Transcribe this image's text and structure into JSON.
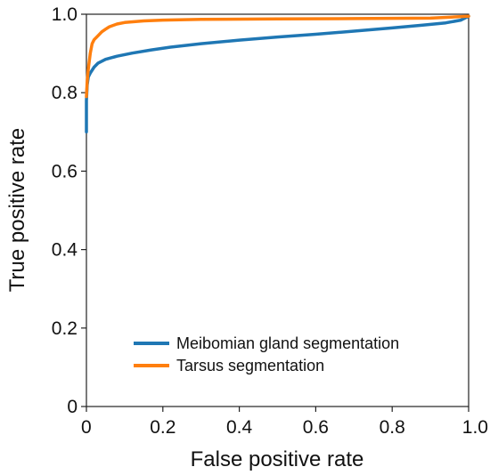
{
  "chart_data": {
    "type": "line",
    "title": "",
    "xlabel": "False positive rate",
    "ylabel": "True positive rate",
    "xlim": [
      0,
      1.0
    ],
    "ylim": [
      0,
      1.0
    ],
    "x_ticks": [
      "0",
      "0.2",
      "0.4",
      "0.6",
      "0.8",
      "1.0"
    ],
    "y_ticks": [
      "0",
      "0.2",
      "0.4",
      "0.6",
      "0.8",
      "1.0"
    ],
    "grid": false,
    "legend_position": "bottom-right",
    "series": [
      {
        "name": "Meibomian gland segmentation",
        "color": "#1f77b4",
        "points": [
          [
            0,
            0.7
          ],
          [
            0,
            0.78
          ],
          [
            0.002,
            0.82
          ],
          [
            0.005,
            0.84
          ],
          [
            0.01,
            0.85
          ],
          [
            0.02,
            0.865
          ],
          [
            0.03,
            0.875
          ],
          [
            0.05,
            0.885
          ],
          [
            0.08,
            0.893
          ],
          [
            0.12,
            0.901
          ],
          [
            0.17,
            0.909
          ],
          [
            0.22,
            0.916
          ],
          [
            0.3,
            0.925
          ],
          [
            0.4,
            0.934
          ],
          [
            0.5,
            0.942
          ],
          [
            0.6,
            0.949
          ],
          [
            0.7,
            0.957
          ],
          [
            0.8,
            0.965
          ],
          [
            0.88,
            0.972
          ],
          [
            0.94,
            0.978
          ],
          [
            0.98,
            0.985
          ],
          [
            1.0,
            0.995
          ]
        ]
      },
      {
        "name": "Tarsus segmentation",
        "color": "#ff7f0e",
        "points": [
          [
            0,
            0.79
          ],
          [
            0.002,
            0.83
          ],
          [
            0.005,
            0.86
          ],
          [
            0.01,
            0.9
          ],
          [
            0.015,
            0.925
          ],
          [
            0.02,
            0.935
          ],
          [
            0.03,
            0.945
          ],
          [
            0.04,
            0.955
          ],
          [
            0.05,
            0.962
          ],
          [
            0.06,
            0.968
          ],
          [
            0.08,
            0.975
          ],
          [
            0.1,
            0.979
          ],
          [
            0.15,
            0.983
          ],
          [
            0.2,
            0.985
          ],
          [
            0.3,
            0.987
          ],
          [
            0.5,
            0.988
          ],
          [
            0.7,
            0.989
          ],
          [
            0.9,
            0.99
          ],
          [
            1.0,
            0.995
          ]
        ]
      }
    ]
  }
}
